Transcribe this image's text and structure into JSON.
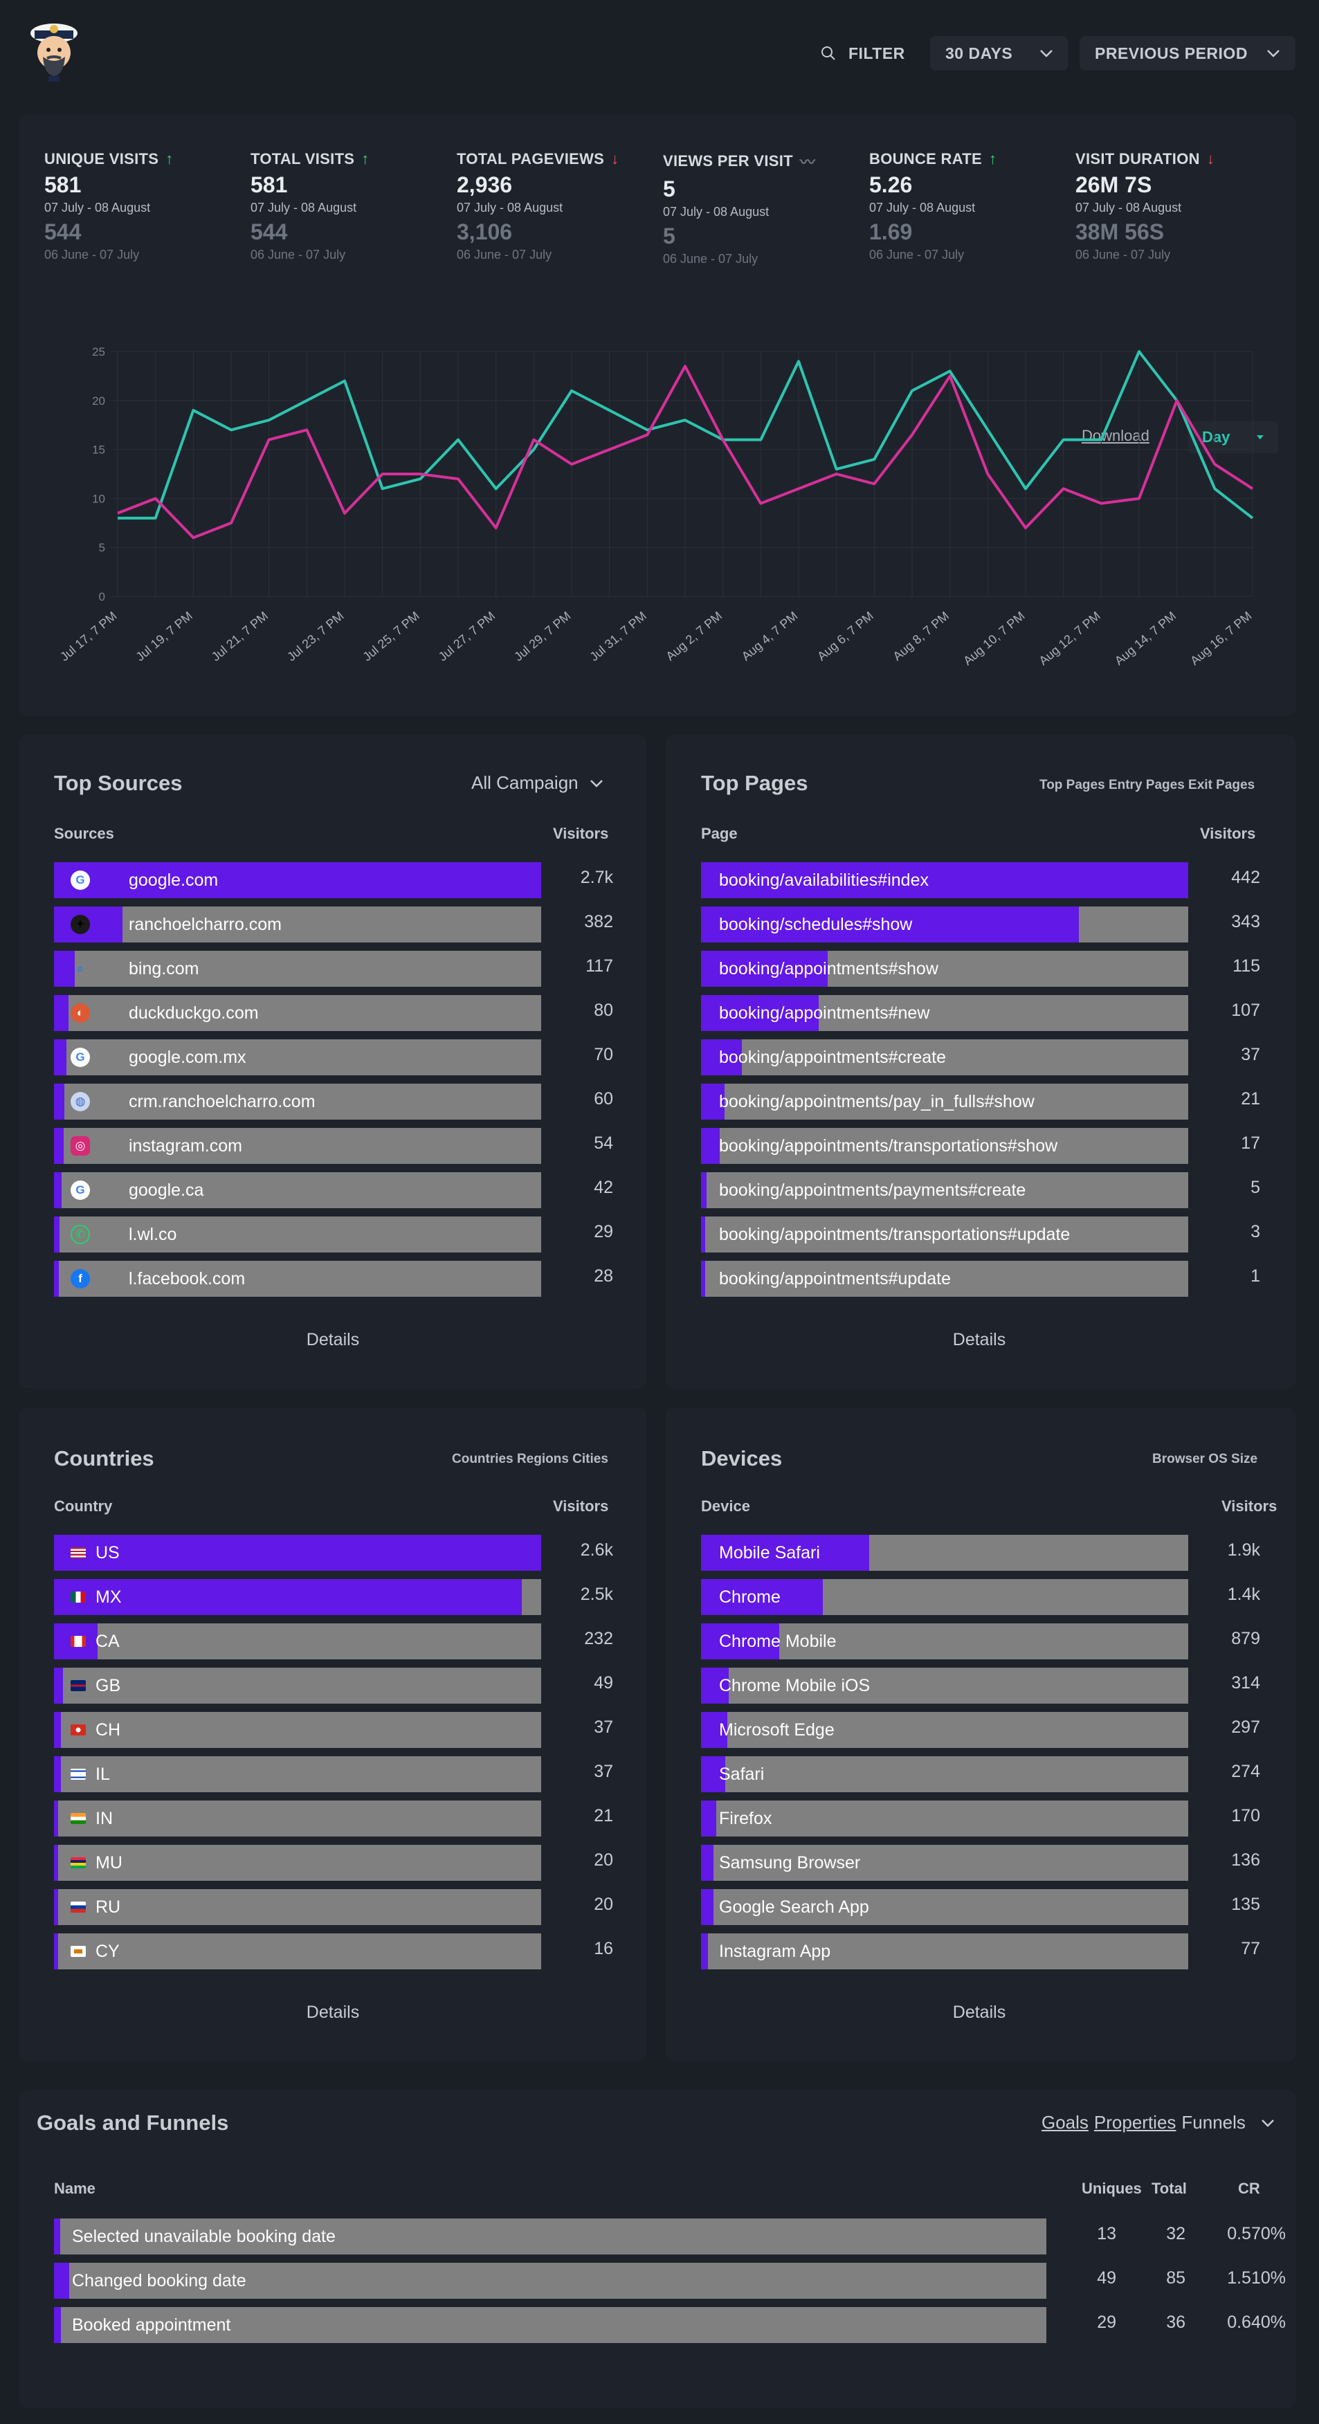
{
  "header": {
    "filter_label": "FILTER",
    "period_label": "30 DAYS",
    "compare_label": "PREVIOUS PERIOD"
  },
  "stats": [
    {
      "label": "UNIQUE VISITS",
      "trend": "up",
      "value": "581",
      "range": "07 July - 08 August",
      "prev_value": "544",
      "prev_range": "06 June - 07 July"
    },
    {
      "label": "TOTAL VISITS",
      "trend": "up",
      "value": "581",
      "range": "07 July - 08 August",
      "prev_value": "544",
      "prev_range": "06 June - 07 July"
    },
    {
      "label": "TOTAL PAGEVIEWS",
      "trend": "down",
      "value": "2,936",
      "range": "07 July - 08 August",
      "prev_value": "3,106",
      "prev_range": "06 June - 07 July"
    },
    {
      "label": "VIEWS PER VISIT",
      "trend": "flat",
      "value": "5",
      "range": "07 July - 08 August",
      "prev_value": "5",
      "prev_range": "06 June - 07 July"
    },
    {
      "label": "BOUNCE RATE",
      "trend": "up",
      "value": "5.26",
      "range": "07 July - 08 August",
      "prev_value": "1.69",
      "prev_range": "06 June - 07 July"
    },
    {
      "label": "VISIT DURATION",
      "trend": "down",
      "value": "26M 7S",
      "range": "07 July - 08 August",
      "prev_value": "38M 56S",
      "prev_range": "06 June - 07 July"
    }
  ],
  "chart_controls": {
    "download_label": "Download",
    "interval_label": "Day"
  },
  "chart_data": {
    "type": "line",
    "title": "",
    "xlabel": "",
    "ylabel": "",
    "ylim": [
      0,
      25
    ],
    "yticks": [
      0,
      5,
      10,
      15,
      20,
      25
    ],
    "x_tick_labels": [
      "Jul 17, 7 PM",
      "Jul 19, 7 PM",
      "Jul 21, 7 PM",
      "Jul 23, 7 PM",
      "Jul 25, 7 PM",
      "Jul 27, 7 PM",
      "Jul 29, 7 PM",
      "Jul 31, 7 PM",
      "Aug 2, 7 PM",
      "Aug 4, 7 PM",
      "Aug 6, 7 PM",
      "Aug 8, 7 PM",
      "Aug 10, 7 PM",
      "Aug 12, 7 PM",
      "Aug 14, 7 PM",
      "Aug 16, 7 PM"
    ],
    "series": [
      {
        "name": "current",
        "color": "#2ec4b0",
        "values": [
          8,
          8,
          19,
          17,
          18,
          20,
          22,
          11,
          12,
          16,
          11,
          15,
          21,
          19,
          17,
          18,
          16,
          16,
          24,
          13,
          14,
          21,
          23,
          17,
          11,
          16,
          16,
          25,
          20,
          11,
          8
        ]
      },
      {
        "name": "previous",
        "color": "#d6309a",
        "values": [
          8.5,
          10,
          6,
          7.5,
          16,
          17,
          8.5,
          12.5,
          12.5,
          12,
          7,
          16,
          13.5,
          15,
          16.5,
          23.5,
          16,
          9.5,
          11,
          12.5,
          11.5,
          16.5,
          22.5,
          12.5,
          7,
          11,
          9.5,
          10,
          20,
          13.5,
          11
        ]
      }
    ]
  },
  "top_sources": {
    "title": "Top Sources",
    "selector_label": "All Campaign",
    "col_name": "Sources",
    "col_value": "Visitors",
    "details_label": "Details",
    "rows": [
      {
        "label": "google.com",
        "value": "2.7k",
        "icon": "google-icon",
        "fraction": 1.0
      },
      {
        "label": "ranchoelcharro.com",
        "value": "382",
        "icon": "rancho-icon",
        "fraction": 0.141
      },
      {
        "label": "bing.com",
        "value": "117",
        "icon": "bing-icon",
        "fraction": 0.043
      },
      {
        "label": "duckduckgo.com",
        "value": "80",
        "icon": "duckduckgo-icon",
        "fraction": 0.03
      },
      {
        "label": "google.com.mx",
        "value": "70",
        "icon": "google-icon",
        "fraction": 0.026
      },
      {
        "label": "crm.ranchoelcharro.com",
        "value": "60",
        "icon": "globe-icon",
        "fraction": 0.022
      },
      {
        "label": "instagram.com",
        "value": "54",
        "icon": "instagram-icon",
        "fraction": 0.02
      },
      {
        "label": "google.ca",
        "value": "42",
        "icon": "google-icon",
        "fraction": 0.016
      },
      {
        "label": "l.wl.co",
        "value": "29",
        "icon": "whatsapp-icon",
        "fraction": 0.011
      },
      {
        "label": "l.facebook.com",
        "value": "28",
        "icon": "facebook-icon",
        "fraction": 0.01
      }
    ]
  },
  "top_pages": {
    "title": "Top Pages",
    "tabs_label": "Top Pages Entry Pages Exit Pages",
    "col_name": "Page",
    "col_value": "Visitors",
    "details_label": "Details",
    "rows": [
      {
        "label": "booking/availabilities#index",
        "value": "442",
        "fraction": 1.0
      },
      {
        "label": "booking/schedules#show",
        "value": "343",
        "fraction": 0.776
      },
      {
        "label": "booking/appointments#show",
        "value": "115",
        "fraction": 0.26
      },
      {
        "label": "booking/appointments#new",
        "value": "107",
        "fraction": 0.242
      },
      {
        "label": "booking/appointments#create",
        "value": "37",
        "fraction": 0.084
      },
      {
        "label": "booking/appointments/pay_in_fulls#show",
        "value": "21",
        "fraction": 0.048
      },
      {
        "label": "booking/appointments/transportations#show",
        "value": "17",
        "fraction": 0.038
      },
      {
        "label": "booking/appointments/payments#create",
        "value": "5",
        "fraction": 0.011
      },
      {
        "label": "booking/appointments/transportations#update",
        "value": "3",
        "fraction": 0.007
      },
      {
        "label": "booking/appointments#update",
        "value": "1",
        "fraction": 0.002
      }
    ]
  },
  "countries": {
    "title": "Countries",
    "tabs_label": "Countries Regions Cities",
    "col_name": "Country",
    "col_value": "Visitors",
    "details_label": "Details",
    "rows": [
      {
        "label": "US",
        "value": "2.6k",
        "icon": "us-flag-icon",
        "fraction": 1.0
      },
      {
        "label": "MX",
        "value": "2.5k",
        "icon": "mx-flag-icon",
        "fraction": 0.96
      },
      {
        "label": "CA",
        "value": "232",
        "icon": "ca-flag-icon",
        "fraction": 0.089
      },
      {
        "label": "GB",
        "value": "49",
        "icon": "gb-flag-icon",
        "fraction": 0.019
      },
      {
        "label": "CH",
        "value": "37",
        "icon": "ch-flag-icon",
        "fraction": 0.014
      },
      {
        "label": "IL",
        "value": "37",
        "icon": "il-flag-icon",
        "fraction": 0.014
      },
      {
        "label": "IN",
        "value": "21",
        "icon": "in-flag-icon",
        "fraction": 0.008
      },
      {
        "label": "MU",
        "value": "20",
        "icon": "mu-flag-icon",
        "fraction": 0.008
      },
      {
        "label": "RU",
        "value": "20",
        "icon": "ru-flag-icon",
        "fraction": 0.008
      },
      {
        "label": "CY",
        "value": "16",
        "icon": "cy-flag-icon",
        "fraction": 0.006
      }
    ]
  },
  "devices": {
    "title": "Devices",
    "tabs_label": "Browser OS Size",
    "col_name": "Device",
    "col_value": "Visitors",
    "details_label": "Details",
    "rows": [
      {
        "label": "Mobile Safari",
        "value": "1.9k",
        "fraction": 0.345
      },
      {
        "label": "Chrome",
        "value": "1.4k",
        "fraction": 0.25
      },
      {
        "label": "Chrome Mobile",
        "value": "879",
        "fraction": 0.16
      },
      {
        "label": "Chrome Mobile iOS",
        "value": "314",
        "fraction": 0.057
      },
      {
        "label": "Microsoft Edge",
        "value": "297",
        "fraction": 0.054
      },
      {
        "label": "Safari",
        "value": "274",
        "fraction": 0.05
      },
      {
        "label": "Firefox",
        "value": "170",
        "fraction": 0.031
      },
      {
        "label": "Samsung Browser",
        "value": "136",
        "fraction": 0.025
      },
      {
        "label": "Google Search App",
        "value": "135",
        "fraction": 0.025
      },
      {
        "label": "Instagram App",
        "value": "77",
        "fraction": 0.014
      }
    ]
  },
  "goals": {
    "title": "Goals and Funnels",
    "tab_goals": "Goals",
    "tab_properties": "Properties",
    "tab_funnels": "Funnels",
    "col_name": "Name",
    "col_uniques": "Uniques",
    "col_total": "Total",
    "col_cr": "CR",
    "rows": [
      {
        "label": "Selected unavailable booking date",
        "uniques": "13",
        "total": "32",
        "cr": "0.570%",
        "fraction": 0.006
      },
      {
        "label": "Changed booking date",
        "uniques": "49",
        "total": "85",
        "cr": "1.510%",
        "fraction": 0.015
      },
      {
        "label": "Booked appointment",
        "uniques": "29",
        "total": "36",
        "cr": "0.640%",
        "fraction": 0.007
      }
    ]
  }
}
